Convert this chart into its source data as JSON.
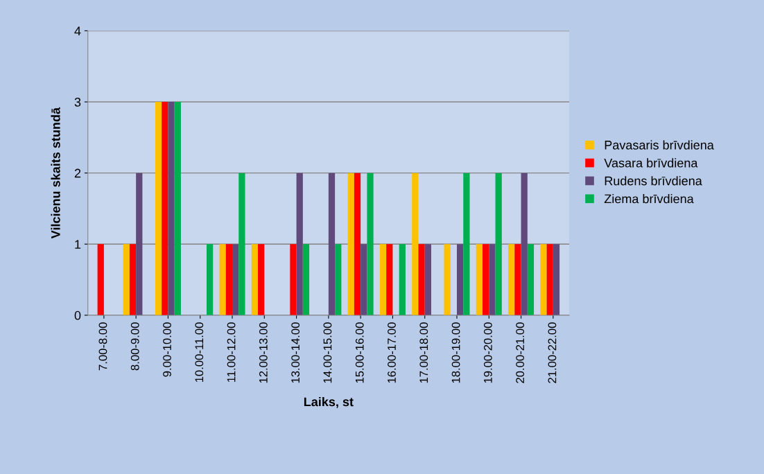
{
  "chart_data": {
    "type": "bar",
    "xlabel": "Laiks, st",
    "ylabel": "Vilcienu skaits stundā",
    "categories": [
      "7.00-8.00",
      "8.00-9.00",
      "9.00-10.00",
      "10.00-11.00",
      "11.00-12.00",
      "12.00-13.00",
      "13.00-14.00",
      "14.00-15.00",
      "15.00-16.00",
      "16.00-17.00",
      "17.00-18.00",
      "18.00-19.00",
      "19.00-20.00",
      "20.00-21.00",
      "21.00-22.00"
    ],
    "series": [
      {
        "name": "Pavasaris brīvdiena",
        "color": "#ffc000",
        "values": [
          0,
          1,
          3,
          0,
          1,
          1,
          0,
          0,
          2,
          1,
          2,
          1,
          1,
          1,
          1
        ]
      },
      {
        "name": "Vasara brīvdiena",
        "color": "#ff0000",
        "values": [
          1,
          1,
          3,
          0,
          1,
          1,
          1,
          0,
          2,
          1,
          1,
          0,
          1,
          1,
          1
        ]
      },
      {
        "name": "Rudens brīvdiena",
        "color": "#604a7b",
        "values": [
          0,
          2,
          3,
          0,
          1,
          0,
          2,
          2,
          1,
          0,
          1,
          1,
          1,
          2,
          1
        ]
      },
      {
        "name": "Ziema brīvdiena",
        "color": "#00b050",
        "values": [
          0,
          0,
          3,
          1,
          2,
          0,
          1,
          1,
          2,
          1,
          0,
          2,
          2,
          1,
          0
        ]
      }
    ],
    "ylim": [
      0,
      4
    ],
    "yticks": [
      0,
      1,
      2,
      3,
      4
    ],
    "grid": "y",
    "legend": "right"
  }
}
